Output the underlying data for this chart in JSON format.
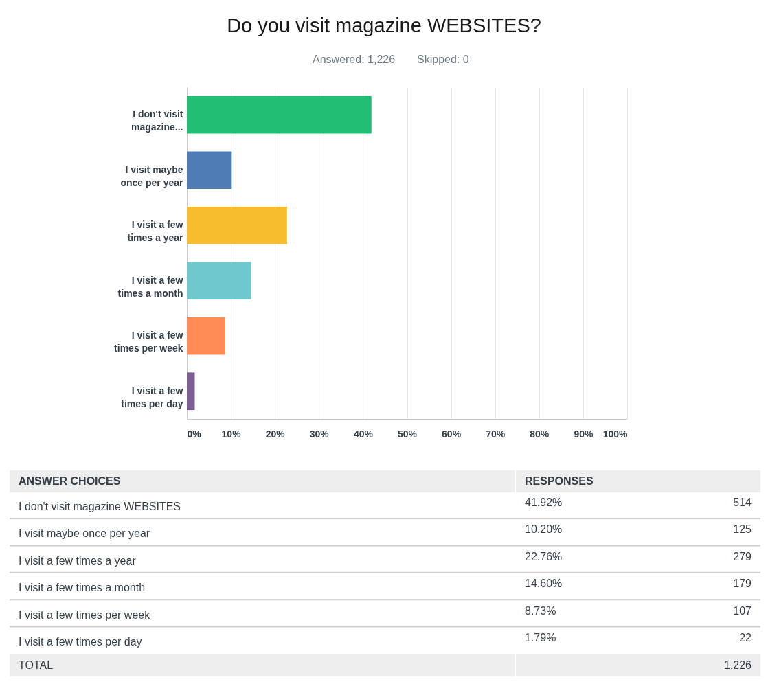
{
  "chart_data": {
    "type": "bar",
    "orientation": "horizontal",
    "title": "Do you visit magazine WEBSITES?",
    "subtitle": "Answered: 1,226",
    "categories": [
      "I don't visit magazine...",
      "I visit maybe once per year",
      "I visit a few times a year",
      "I visit a few times a month",
      "I visit a few times per week",
      "I visit a few times per day"
    ],
    "values": [
      41.92,
      10.2,
      22.76,
      14.6,
      8.73,
      1.79
    ],
    "colors": [
      "#21bf73",
      "#507cb6",
      "#f7bd2e",
      "#6fc8cc",
      "#ff8b55",
      "#7d5f94"
    ],
    "xlim": [
      0,
      100
    ],
    "xticks": [
      {
        "value": 0,
        "label": "0%"
      },
      {
        "value": 10,
        "label": "10%"
      },
      {
        "value": 20,
        "label": "20%"
      },
      {
        "value": 30,
        "label": "30%"
      },
      {
        "value": 40,
        "label": "40%"
      },
      {
        "value": 50,
        "label": "50%"
      },
      {
        "value": 60,
        "label": "60%"
      },
      {
        "value": 70,
        "label": "70%"
      },
      {
        "value": 80,
        "label": "80%"
      },
      {
        "value": 90,
        "label": "90%"
      },
      {
        "value": 100,
        "label": "100%"
      }
    ],
    "grid": "x",
    "annotations": [
      "Skipped: 0",
      "ANSWER CHOICES",
      "RESPONSES",
      "I don't visit magazine WEBSITES",
      "41.92%",
      "514",
      "I visit maybe once per year",
      "10.20%",
      "125",
      "I visit a few times a year",
      "22.76%",
      "279",
      "I visit a few times a month",
      "14.60%",
      "179",
      "I visit a few times per week",
      "8.73%",
      "107",
      "I visit a few times per day",
      "1.79%",
      "22",
      "TOTAL",
      "1,226"
    ]
  }
}
